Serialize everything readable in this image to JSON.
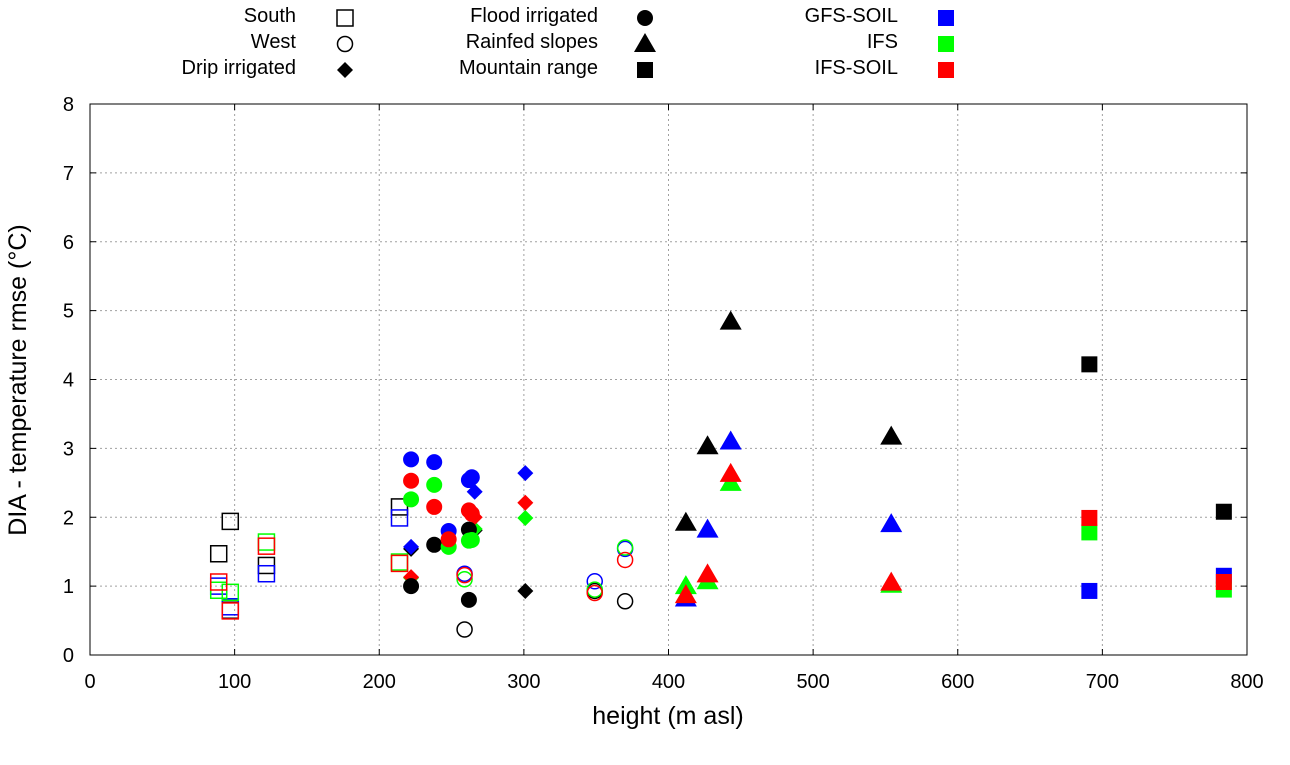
{
  "chart_data": {
    "type": "scatter",
    "xlabel": "height (m asl)",
    "ylabel": "DIA - temperature rmse (°C)",
    "xlim": [
      0,
      800
    ],
    "ylim": [
      0,
      8
    ],
    "xticks": [
      "0",
      "100",
      "200",
      "300",
      "400",
      "500",
      "600",
      "700",
      "800"
    ],
    "yticks": [
      "0",
      "1",
      "2",
      "3",
      "4",
      "5",
      "6",
      "7",
      "8"
    ],
    "grid": true,
    "legend_placement": "top, outside plot",
    "site_types": [
      {
        "name": "South",
        "marker": "open-square"
      },
      {
        "name": "West",
        "marker": "open-circle"
      },
      {
        "name": "Drip irrigated",
        "marker": "filled-diamond"
      },
      {
        "name": "Flood irrigated",
        "marker": "filled-circle"
      },
      {
        "name": "Rainfed slopes",
        "marker": "filled-triangle"
      },
      {
        "name": "Mountain range",
        "marker": "filled-square"
      }
    ],
    "models": [
      {
        "name": "",
        "color": "#000000"
      },
      {
        "name": "GFS-SOIL",
        "color": "#0000ff"
      },
      {
        "name": "IFS",
        "color": "#00ff00"
      },
      {
        "name": "IFS-SOIL",
        "color": "#ff0000"
      }
    ],
    "series": [
      {
        "site": "South",
        "color": "#000000",
        "points": [
          [
            89,
            1.47
          ],
          [
            97,
            1.94
          ],
          [
            97,
            0.65
          ],
          [
            122,
            1.3
          ],
          [
            214,
            2.15
          ]
        ]
      },
      {
        "site": "South",
        "color": "#0000ff",
        "points": [
          [
            89,
            1.0
          ],
          [
            97,
            0.7
          ],
          [
            122,
            1.18
          ],
          [
            214,
            1.99
          ]
        ]
      },
      {
        "site": "South",
        "color": "#00ff00",
        "points": [
          [
            89,
            0.94
          ],
          [
            97,
            0.91
          ],
          [
            122,
            1.64
          ],
          [
            214,
            1.35
          ]
        ]
      },
      {
        "site": "South",
        "color": "#ff0000",
        "points": [
          [
            89,
            1.06
          ],
          [
            97,
            0.64
          ],
          [
            122,
            1.58
          ],
          [
            214,
            1.33
          ]
        ]
      },
      {
        "site": "West",
        "color": "#000000",
        "points": [
          [
            259,
            0.37
          ],
          [
            349,
            0.93
          ],
          [
            370,
            0.78
          ]
        ]
      },
      {
        "site": "West",
        "color": "#0000ff",
        "points": [
          [
            259,
            1.18
          ],
          [
            349,
            1.07
          ],
          [
            370,
            1.54
          ]
        ]
      },
      {
        "site": "West",
        "color": "#00ff00",
        "points": [
          [
            259,
            1.1
          ],
          [
            349,
            0.95
          ],
          [
            370,
            1.56
          ]
        ]
      },
      {
        "site": "West",
        "color": "#ff0000",
        "points": [
          [
            259,
            1.16
          ],
          [
            349,
            0.9
          ],
          [
            370,
            1.38
          ]
        ]
      },
      {
        "site": "Drip irrigated",
        "color": "#000000",
        "points": [
          [
            222,
            1.54
          ],
          [
            266,
            1.81
          ],
          [
            301,
            0.93
          ]
        ]
      },
      {
        "site": "Drip irrigated",
        "color": "#0000ff",
        "points": [
          [
            222,
            1.57
          ],
          [
            266,
            2.37
          ],
          [
            301,
            2.64
          ]
        ]
      },
      {
        "site": "Drip irrigated",
        "color": "#00ff00",
        "points": [
          [
            222,
            1.12
          ],
          [
            266,
            1.83
          ],
          [
            301,
            1.99
          ]
        ]
      },
      {
        "site": "Drip irrigated",
        "color": "#ff0000",
        "points": [
          [
            222,
            1.13
          ],
          [
            266,
            2.0
          ],
          [
            301,
            2.21
          ]
        ]
      },
      {
        "site": "Flood irrigated",
        "color": "#000000",
        "points": [
          [
            222,
            1.0
          ],
          [
            238,
            1.6
          ],
          [
            262,
            0.8
          ],
          [
            262,
            1.82
          ]
        ]
      },
      {
        "site": "Flood irrigated",
        "color": "#0000ff",
        "points": [
          [
            222,
            2.84
          ],
          [
            238,
            2.8
          ],
          [
            248,
            1.8
          ],
          [
            262,
            2.54
          ],
          [
            264,
            2.58
          ]
        ]
      },
      {
        "site": "Flood irrigated",
        "color": "#00ff00",
        "points": [
          [
            222,
            2.26
          ],
          [
            238,
            2.47
          ],
          [
            248,
            1.57
          ],
          [
            262,
            1.66
          ],
          [
            264,
            1.67
          ]
        ]
      },
      {
        "site": "Flood irrigated",
        "color": "#ff0000",
        "points": [
          [
            222,
            2.53
          ],
          [
            238,
            2.15
          ],
          [
            248,
            1.68
          ],
          [
            262,
            2.1
          ],
          [
            264,
            2.05
          ]
        ]
      },
      {
        "site": "Rainfed slopes",
        "color": "#000000",
        "points": [
          [
            412,
            1.92
          ],
          [
            427,
            3.03
          ],
          [
            443,
            4.84
          ],
          [
            554,
            3.17
          ]
        ]
      },
      {
        "site": "Rainfed slopes",
        "color": "#0000ff",
        "points": [
          [
            412,
            0.82
          ],
          [
            427,
            1.82
          ],
          [
            443,
            3.1
          ],
          [
            554,
            1.9
          ]
        ]
      },
      {
        "site": "Rainfed slopes",
        "color": "#00ff00",
        "points": [
          [
            412,
            1.0
          ],
          [
            427,
            1.07
          ],
          [
            443,
            2.5
          ],
          [
            554,
            1.02
          ]
        ]
      },
      {
        "site": "Rainfed slopes",
        "color": "#ff0000",
        "points": [
          [
            412,
            0.87
          ],
          [
            427,
            1.17
          ],
          [
            443,
            2.63
          ],
          [
            554,
            1.05
          ]
        ]
      },
      {
        "site": "Mountain range",
        "color": "#000000",
        "points": [
          [
            691,
            4.22
          ],
          [
            784,
            2.08
          ]
        ]
      },
      {
        "site": "Mountain range",
        "color": "#0000ff",
        "points": [
          [
            691,
            0.93
          ],
          [
            784,
            1.15
          ]
        ]
      },
      {
        "site": "Mountain range",
        "color": "#00ff00",
        "points": [
          [
            691,
            1.78
          ],
          [
            784,
            0.95
          ]
        ]
      },
      {
        "site": "Mountain range",
        "color": "#ff0000",
        "points": [
          [
            691,
            1.99
          ],
          [
            784,
            1.06
          ]
        ]
      }
    ]
  }
}
